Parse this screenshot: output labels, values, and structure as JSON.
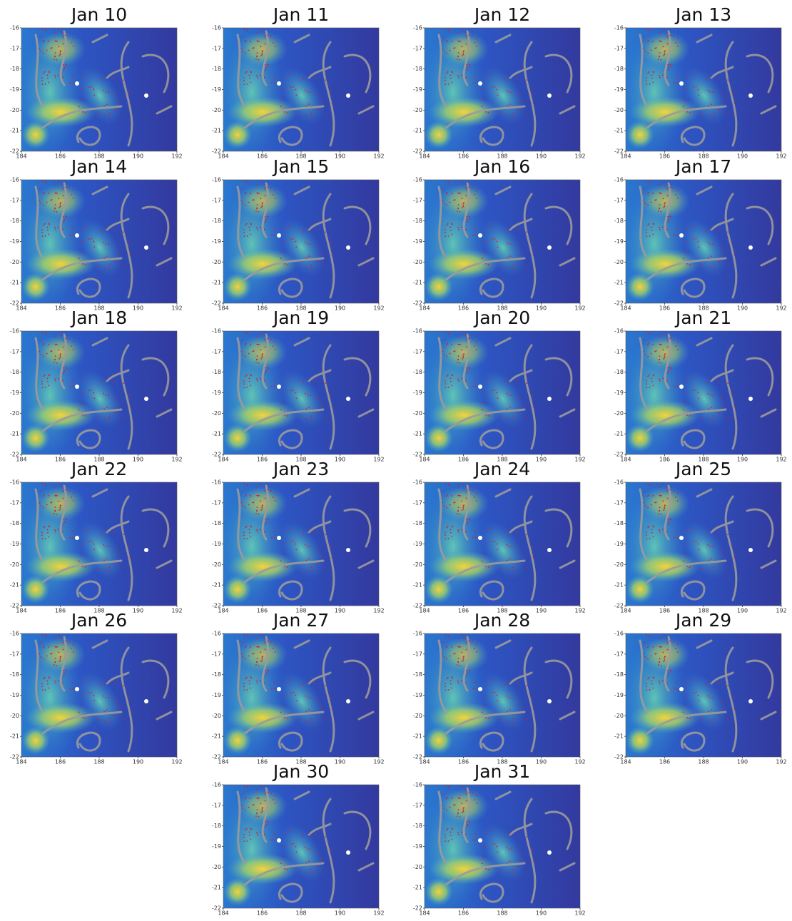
{
  "panels": [
    {
      "title": "Jan 10"
    },
    {
      "title": "Jan 11"
    },
    {
      "title": "Jan 12"
    },
    {
      "title": "Jan 13"
    },
    {
      "title": "Jan 14"
    },
    {
      "title": "Jan 15"
    },
    {
      "title": "Jan 16"
    },
    {
      "title": "Jan 17"
    },
    {
      "title": "Jan 18"
    },
    {
      "title": "Jan 19"
    },
    {
      "title": "Jan 20"
    },
    {
      "title": "Jan 21"
    },
    {
      "title": "Jan 22"
    },
    {
      "title": "Jan 23"
    },
    {
      "title": "Jan 24"
    },
    {
      "title": "Jan 25"
    },
    {
      "title": "Jan 26"
    },
    {
      "title": "Jan 27"
    },
    {
      "title": "Jan 28"
    },
    {
      "title": "Jan 29"
    },
    {
      "title": "Jan 30"
    },
    {
      "title": "Jan 31"
    }
  ],
  "axes": {
    "xlim": [
      184,
      192
    ],
    "ylim": [
      -22,
      -16
    ],
    "xticks": [
      184,
      186,
      188,
      190,
      192
    ],
    "yticks": [
      -16,
      -17,
      -18,
      -19,
      -20,
      -21,
      -22
    ]
  }
}
